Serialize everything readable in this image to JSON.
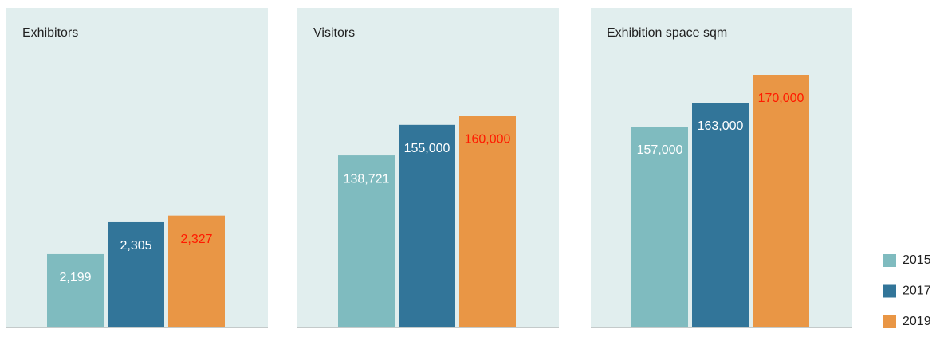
{
  "chart_data": [
    {
      "type": "bar",
      "title": "Exhibitors",
      "values": [
        2199,
        2305,
        2327
      ],
      "value_labels": [
        "2,199",
        "2,305",
        "2,327"
      ],
      "ylim": [
        1955,
        3018
      ]
    },
    {
      "type": "bar",
      "title": "Visitors",
      "values": [
        138721,
        155000,
        160000
      ],
      "value_labels": [
        "138,721",
        "155,000",
        "160,000"
      ],
      "ylim": [
        46800,
        217500
      ]
    },
    {
      "type": "bar",
      "title": "Exhibition space sqm",
      "values": [
        157000,
        163000,
        170000
      ],
      "value_labels": [
        "157,000",
        "163,000",
        "170,000"
      ],
      "ylim": [
        106600,
        186800
      ]
    }
  ],
  "legend": {
    "items": [
      {
        "name": "2015",
        "color": "#7fbbbf",
        "label_color": "#ffffff"
      },
      {
        "name": "2017",
        "color": "#327599",
        "label_color": "#ffffff"
      },
      {
        "name": "2019",
        "color": "#e99645",
        "label_color": "#ff1a00"
      }
    ]
  }
}
